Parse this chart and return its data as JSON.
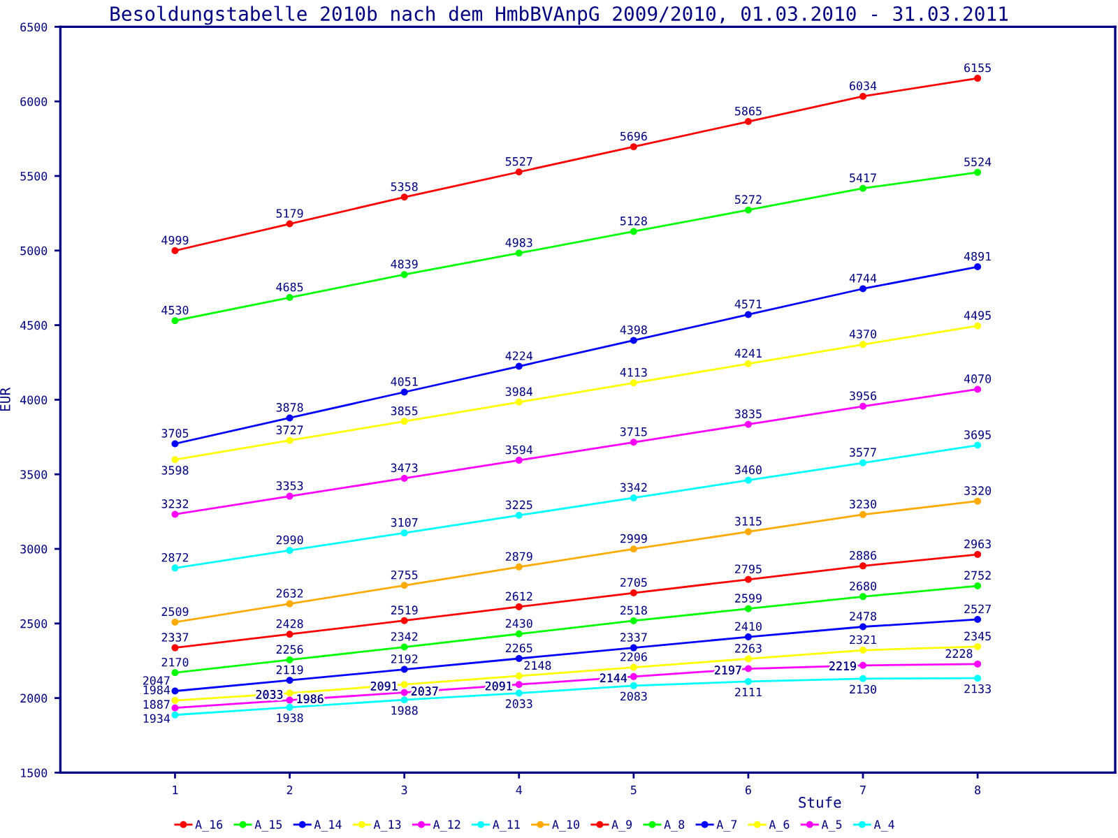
{
  "chart_data": {
    "type": "line",
    "title": "Besoldungstabelle 2010b nach dem HmbBVAnpG 2009/2010, 01.03.2010 - 31.03.2011",
    "xlabel": "Stufe",
    "ylabel": "EUR",
    "x": [
      1,
      2,
      3,
      4,
      5,
      6,
      7,
      8
    ],
    "xlim": [
      0,
      9.2
    ],
    "xticks": [
      1,
      2,
      3,
      4,
      5,
      6,
      7,
      8
    ],
    "ylim": [
      1500,
      6500
    ],
    "yticks": [
      1500,
      2000,
      2500,
      3000,
      3500,
      4000,
      4500,
      5000,
      5500,
      6000,
      6500
    ],
    "grid": false,
    "legend": "bottom",
    "marker": "circle",
    "line_style": "solid",
    "data_labels": true,
    "series": [
      {
        "name": "A_16",
        "color": "#ff0000",
        "values": [
          4999,
          5179,
          5358,
          5527,
          5696,
          5865,
          6034,
          6155
        ]
      },
      {
        "name": "A_15",
        "color": "#00ff00",
        "values": [
          4530,
          4685,
          4839,
          4983,
          5128,
          5272,
          5417,
          5524
        ]
      },
      {
        "name": "A_14",
        "color": "#0000ff",
        "values": [
          3705,
          3878,
          4051,
          4224,
          4398,
          4571,
          4744,
          4891
        ]
      },
      {
        "name": "A_13",
        "color": "#ffff00",
        "values": [
          3598,
          3727,
          3855,
          3984,
          4113,
          4241,
          4370,
          4495
        ]
      },
      {
        "name": "A_12",
        "color": "#ff00ff",
        "values": [
          3232,
          3353,
          3473,
          3594,
          3715,
          3835,
          3956,
          4070
        ]
      },
      {
        "name": "A_11",
        "color": "#00ffff",
        "values": [
          2872,
          2990,
          3107,
          3225,
          3342,
          3460,
          3577,
          3695
        ]
      },
      {
        "name": "A_10",
        "color": "#ffaa00",
        "values": [
          2509,
          2632,
          2755,
          2879,
          2999,
          3115,
          3230,
          3320
        ]
      },
      {
        "name": "A_9",
        "color": "#ff0000",
        "values": [
          2337,
          2428,
          2519,
          2612,
          2705,
          2795,
          2886,
          2963
        ]
      },
      {
        "name": "A_8",
        "color": "#00ff00",
        "values": [
          2170,
          2256,
          2342,
          2430,
          2518,
          2599,
          2680,
          2752
        ]
      },
      {
        "name": "A_7",
        "color": "#0000ff",
        "values": [
          2047,
          2119,
          2192,
          2265,
          2337,
          2410,
          2478,
          2527
        ]
      },
      {
        "name": "A_6",
        "color": "#ffff00",
        "values": [
          1984,
          2033,
          2091,
          2148,
          2206,
          2263,
          2321,
          2345
        ]
      },
      {
        "name": "A_5",
        "color": "#ff00ff",
        "values": [
          1934,
          1986,
          2037,
          2091,
          2144,
          2197,
          2219,
          2228
        ]
      },
      {
        "name": "A_4",
        "color": "#00ffff",
        "values": [
          1887,
          1938,
          1988,
          2033,
          2083,
          2111,
          2130,
          2133
        ]
      }
    ]
  }
}
